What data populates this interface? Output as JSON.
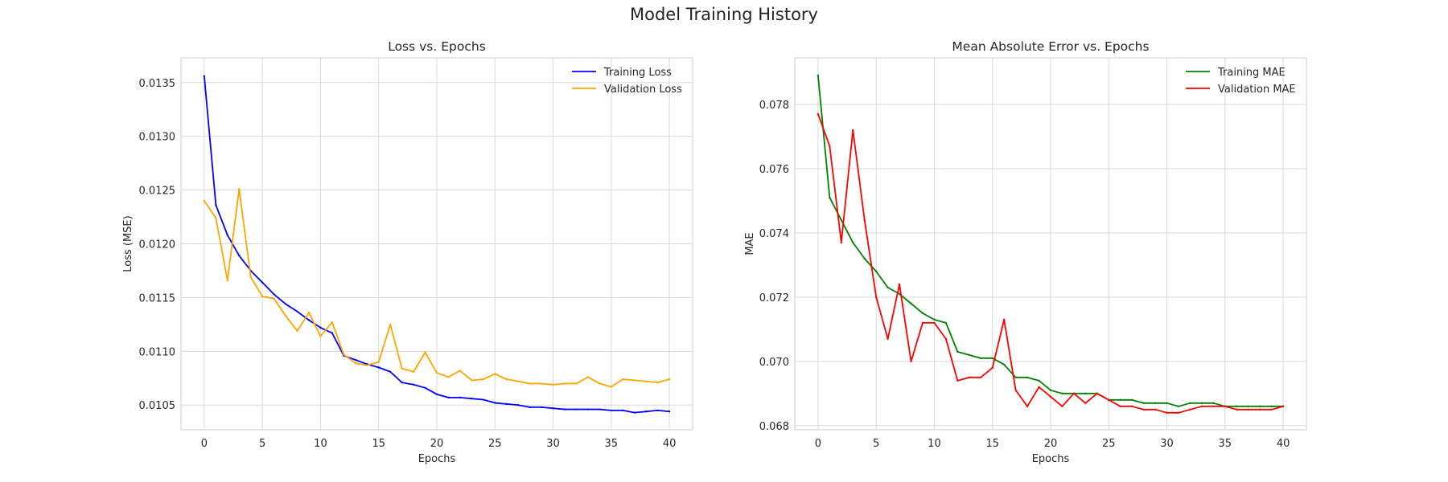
{
  "figure": {
    "title": "Model Training History"
  },
  "chart_data": [
    {
      "type": "line",
      "title": "Loss vs. Epochs",
      "xlabel": "Epochs",
      "ylabel": "Loss (MSE)",
      "xlim": [
        -2,
        42
      ],
      "ylim": [
        0.01027,
        0.01373
      ],
      "xticks": [
        0,
        5,
        10,
        15,
        20,
        25,
        30,
        35,
        40
      ],
      "xtick_labels": [
        "0",
        "5",
        "10",
        "15",
        "20",
        "25",
        "30",
        "35",
        "40"
      ],
      "yticks": [
        0.0105,
        0.011,
        0.0115,
        0.012,
        0.0125,
        0.013,
        0.0135
      ],
      "ytick_labels": [
        "0.0105",
        "0.0110",
        "0.0115",
        "0.0120",
        "0.0125",
        "0.0130",
        "0.0135"
      ],
      "grid": true,
      "legend_position": "top-right",
      "x": [
        0,
        1,
        2,
        3,
        4,
        5,
        6,
        7,
        8,
        9,
        10,
        11,
        12,
        13,
        14,
        15,
        16,
        17,
        18,
        19,
        20,
        21,
        22,
        23,
        24,
        25,
        26,
        27,
        28,
        29,
        30,
        31,
        32,
        33,
        34,
        35,
        36,
        37,
        38,
        39,
        40
      ],
      "series": [
        {
          "name": "Training Loss",
          "color": "#0000ff",
          "values": [
            0.01356,
            0.01236,
            0.01208,
            0.01189,
            0.01175,
            0.01164,
            0.01153,
            0.01144,
            0.01137,
            0.01129,
            0.01122,
            0.01117,
            0.01096,
            0.01092,
            0.01088,
            0.01085,
            0.01081,
            0.01071,
            0.01069,
            0.01066,
            0.0106,
            0.01057,
            0.01057,
            0.01056,
            0.01055,
            0.01052,
            0.01051,
            0.0105,
            0.01048,
            0.01048,
            0.01047,
            0.01046,
            0.01046,
            0.01046,
            0.01046,
            0.01045,
            0.01045,
            0.01043,
            0.01044,
            0.01045,
            0.01044
          ]
        },
        {
          "name": "Validation Loss",
          "color": "#ffa500",
          "values": [
            0.0124,
            0.01224,
            0.01166,
            0.01251,
            0.01169,
            0.01151,
            0.01149,
            0.01133,
            0.01119,
            0.01136,
            0.01114,
            0.01127,
            0.01097,
            0.01089,
            0.01087,
            0.0109,
            0.01125,
            0.01084,
            0.01081,
            0.01099,
            0.0108,
            0.01076,
            0.01082,
            0.01073,
            0.01074,
            0.01079,
            0.01074,
            0.01072,
            0.0107,
            0.0107,
            0.01069,
            0.0107,
            0.0107,
            0.01076,
            0.0107,
            0.01067,
            0.01074,
            0.01073,
            0.01072,
            0.01071,
            0.01074
          ]
        }
      ]
    },
    {
      "type": "line",
      "title": "Mean Absolute Error vs. Epochs",
      "xlabel": "Epochs",
      "ylabel": "MAE",
      "xlim": [
        -2,
        42
      ],
      "ylim": [
        0.06787,
        0.07945
      ],
      "xticks": [
        0,
        5,
        10,
        15,
        20,
        25,
        30,
        35,
        40
      ],
      "xtick_labels": [
        "0",
        "5",
        "10",
        "15",
        "20",
        "25",
        "30",
        "35",
        "40"
      ],
      "yticks": [
        0.068,
        0.07,
        0.072,
        0.074,
        0.076,
        0.078
      ],
      "ytick_labels": [
        "0.068",
        "0.070",
        "0.072",
        "0.074",
        "0.076",
        "0.078"
      ],
      "grid": true,
      "legend_position": "top-right",
      "x": [
        0,
        1,
        2,
        3,
        4,
        5,
        6,
        7,
        8,
        9,
        10,
        11,
        12,
        13,
        14,
        15,
        16,
        17,
        18,
        19,
        20,
        21,
        22,
        23,
        24,
        25,
        26,
        27,
        28,
        29,
        30,
        31,
        32,
        33,
        34,
        35,
        36,
        37,
        38,
        39,
        40
      ],
      "series": [
        {
          "name": "Training MAE",
          "color": "#008000",
          "values": [
            0.0789,
            0.0751,
            0.0744,
            0.0737,
            0.0732,
            0.0728,
            0.0723,
            0.0721,
            0.0718,
            0.0715,
            0.0713,
            0.0712,
            0.0703,
            0.0702,
            0.0701,
            0.0701,
            0.0699,
            0.0695,
            0.0695,
            0.0694,
            0.0691,
            0.069,
            0.069,
            0.069,
            0.069,
            0.0688,
            0.0688,
            0.0688,
            0.0687,
            0.0687,
            0.0687,
            0.0686,
            0.0687,
            0.0687,
            0.0687,
            0.0686,
            0.0686,
            0.0686,
            0.0686,
            0.0686,
            0.0686
          ]
        },
        {
          "name": "Validation MAE",
          "color": "#ff0000",
          "values": [
            0.0777,
            0.0767,
            0.0737,
            0.0772,
            0.0744,
            0.072,
            0.0707,
            0.0724,
            0.07,
            0.0712,
            0.0712,
            0.0707,
            0.0694,
            0.0695,
            0.0695,
            0.0698,
            0.0713,
            0.0691,
            0.0686,
            0.0692,
            0.0689,
            0.0686,
            0.069,
            0.0687,
            0.069,
            0.0688,
            0.0686,
            0.0686,
            0.0685,
            0.0685,
            0.0684,
            0.0684,
            0.0685,
            0.0686,
            0.0686,
            0.0686,
            0.0685,
            0.0685,
            0.0685,
            0.0685,
            0.0686
          ]
        }
      ]
    }
  ]
}
